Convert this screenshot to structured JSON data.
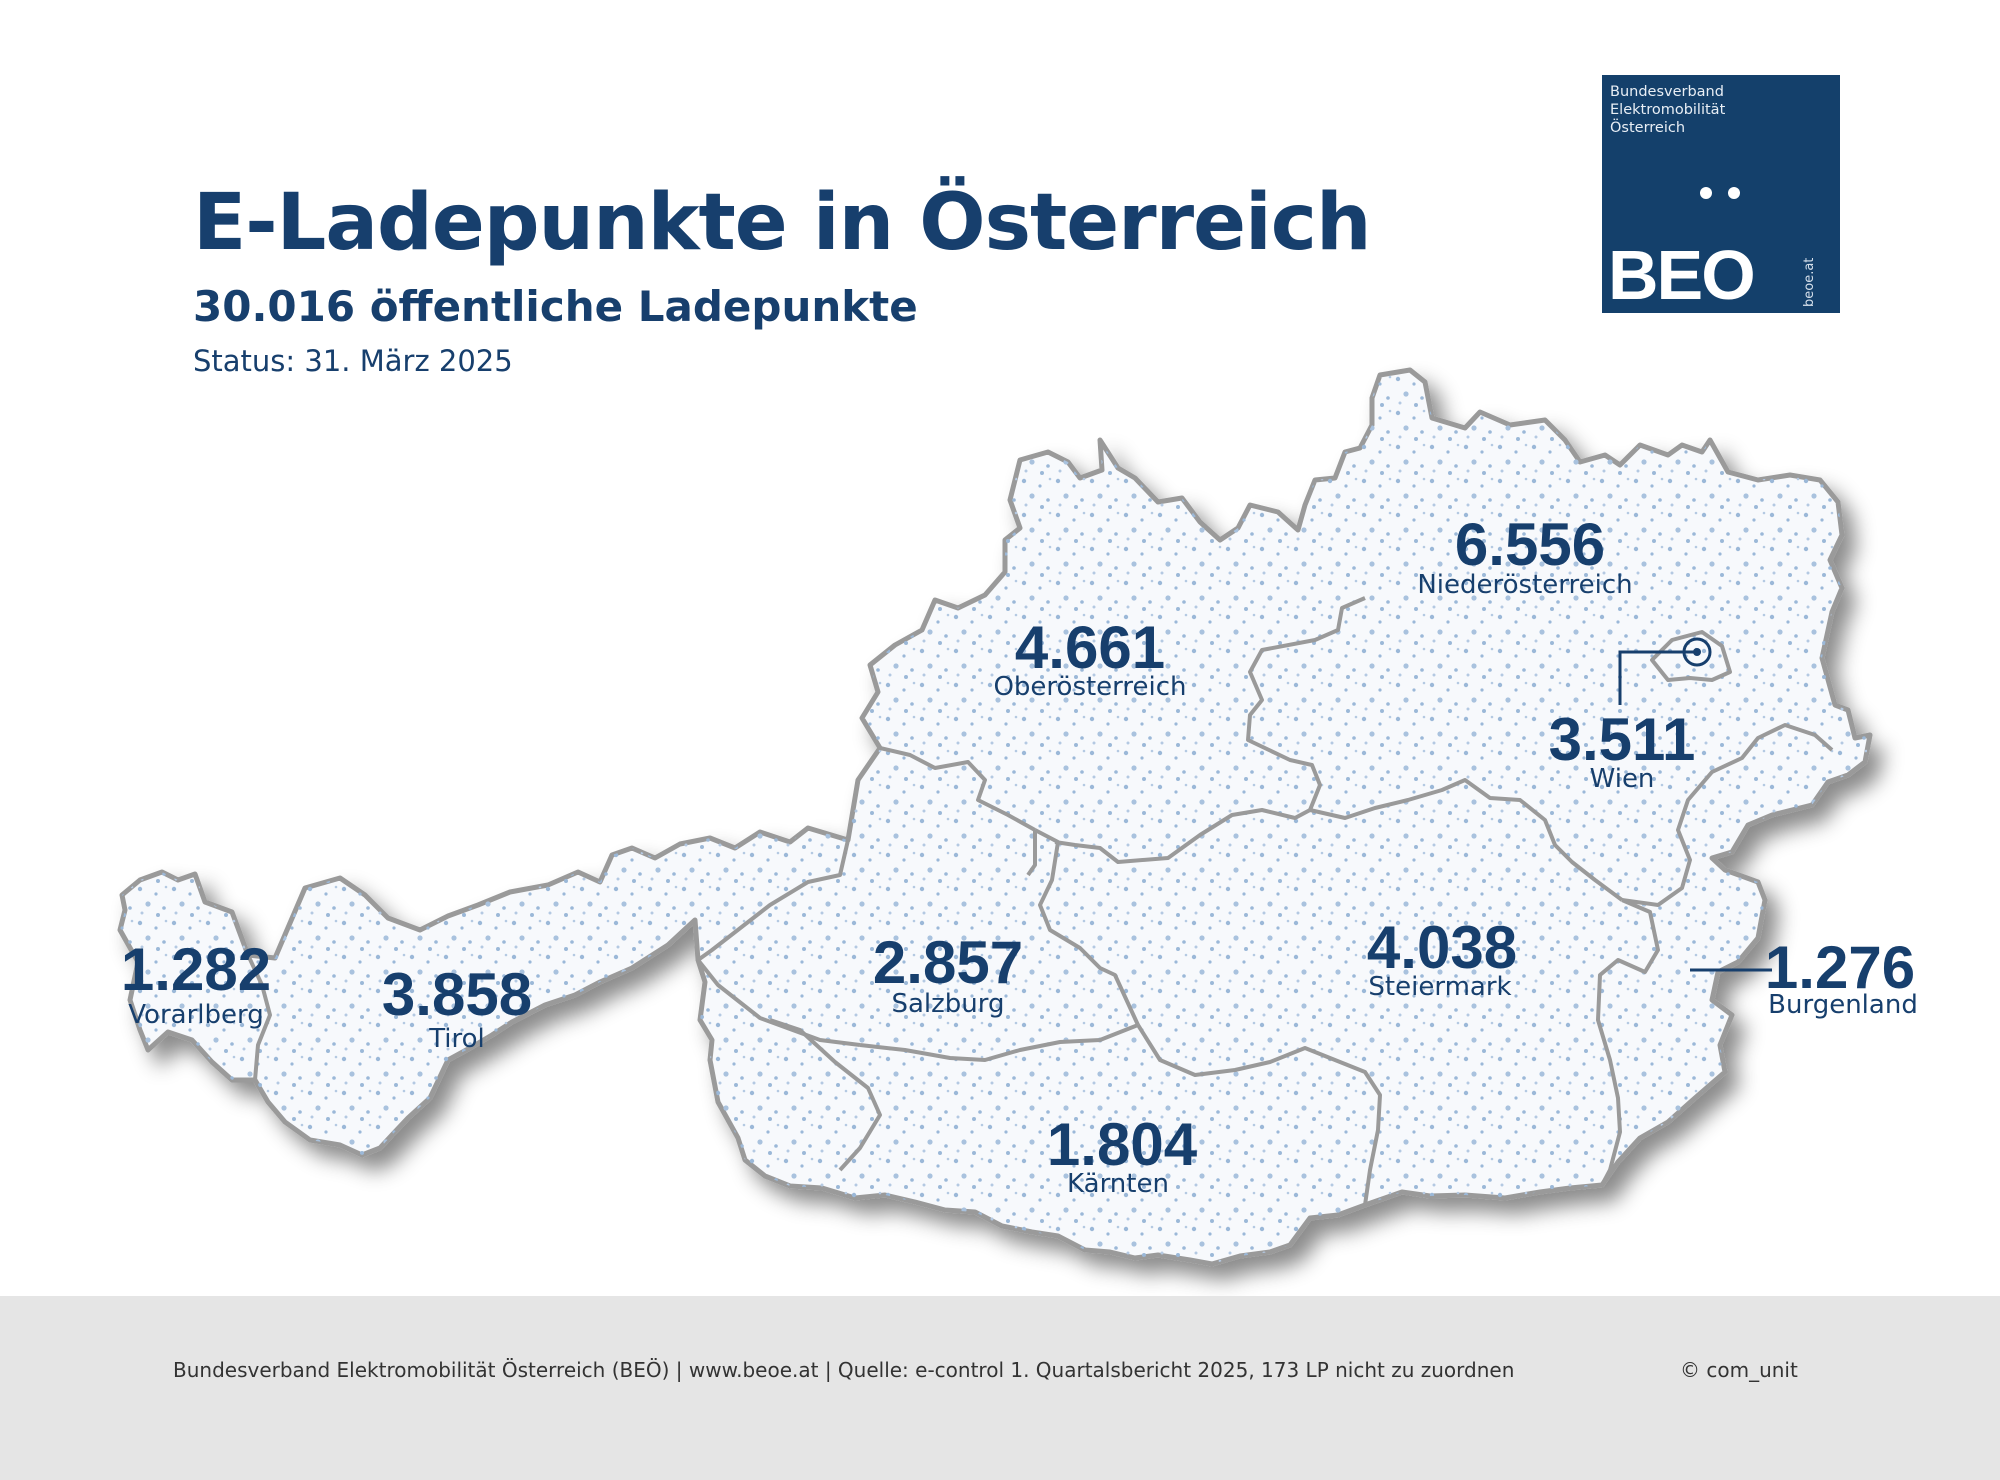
{
  "header": {
    "title": "E-Ladepunkte in Österreich",
    "subtitle": "30.016 öffentliche Ladepunkte",
    "status": "Status: 31. März 2025"
  },
  "logo": {
    "org_lines": [
      "Bundesverband",
      "Elektromobilität",
      "Österreich"
    ],
    "wordmark": "BEO",
    "url": "beoe.at",
    "background": "#14406b"
  },
  "map": {
    "fill_color": "#f7f9fc",
    "border_color": "#9a9a9a",
    "dot_color": "#8fb0d4",
    "regions": [
      {
        "id": "vorarlberg",
        "name": "Vorarlberg",
        "value": "1.282"
      },
      {
        "id": "tirol",
        "name": "Tirol",
        "value": "3.858"
      },
      {
        "id": "salzburg",
        "name": "Salzburg",
        "value": "2.857"
      },
      {
        "id": "oberoesterreich",
        "name": "Oberösterreich",
        "value": "4.661"
      },
      {
        "id": "niederoesterreich",
        "name": "Niederösterreich",
        "value": "6.556"
      },
      {
        "id": "wien",
        "name": "Wien",
        "value": "3.511"
      },
      {
        "id": "steiermark",
        "name": "Steiermark",
        "value": "4.038"
      },
      {
        "id": "kaernten",
        "name": "Kärnten",
        "value": "1.804"
      },
      {
        "id": "burgenland",
        "name": "Burgenland",
        "value": "1.276"
      }
    ]
  },
  "footer": {
    "source": "Bundesverband Elektromobilität Österreich (BEÖ) | www.beoe.at | Quelle: e-control 1. Quartalsbericht 2025, 173 LP nicht zu zuordnen",
    "credit": "© com_unit"
  }
}
